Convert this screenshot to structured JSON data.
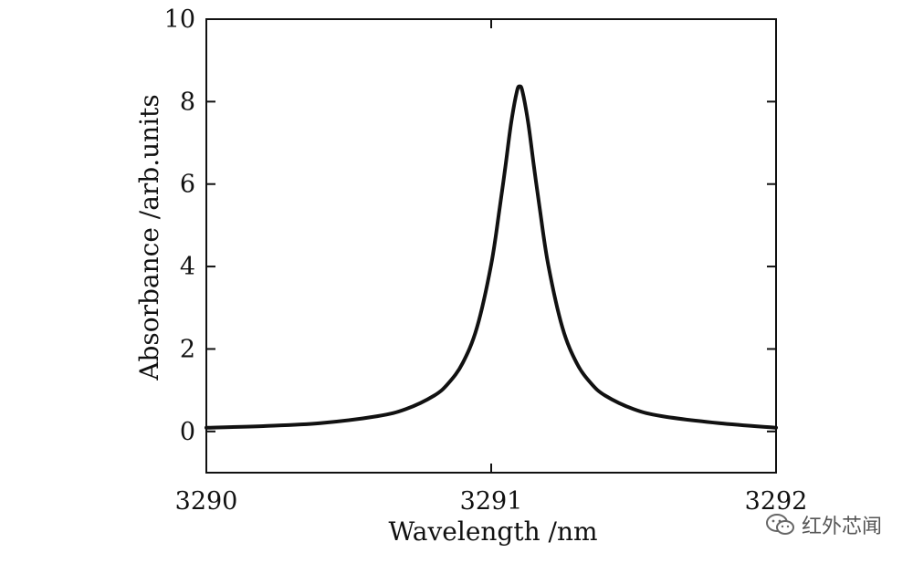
{
  "chart_data": {
    "type": "line",
    "title": "",
    "xlabel": "Wavelength /nm",
    "ylabel": "Absorbance /arb.units",
    "xlim": [
      3290,
      3292
    ],
    "ylim": [
      -1,
      10
    ],
    "x_ticks": [
      3290,
      3291,
      3292
    ],
    "x_tick_labels": [
      "3290",
      "3291",
      "3292"
    ],
    "y_ticks": [
      0,
      2,
      4,
      6,
      8,
      10
    ],
    "y_tick_labels": [
      "0",
      "2",
      "4",
      "6",
      "8",
      "10"
    ],
    "grid": false,
    "legend": "none",
    "series": [
      {
        "name": "Absorbance",
        "color": "#111111",
        "x": [
          3290.0,
          3290.2,
          3290.4,
          3290.6,
          3290.7,
          3290.8,
          3290.85,
          3290.9,
          3290.95,
          3291.0,
          3291.03,
          3291.05,
          3291.07,
          3291.09,
          3291.1,
          3291.11,
          3291.13,
          3291.15,
          3291.17,
          3291.2,
          3291.25,
          3291.3,
          3291.35,
          3291.4,
          3291.5,
          3291.6,
          3291.8,
          3292.0
        ],
        "values": [
          0.09,
          0.13,
          0.2,
          0.37,
          0.54,
          0.87,
          1.17,
          1.66,
          2.52,
          4.05,
          5.43,
          6.43,
          7.48,
          8.24,
          8.37,
          8.24,
          7.48,
          6.43,
          5.43,
          4.05,
          2.52,
          1.66,
          1.17,
          0.87,
          0.54,
          0.37,
          0.2,
          0.09
        ]
      }
    ]
  },
  "watermark": {
    "text": "红外芯闻",
    "icon": "wechat-icon"
  }
}
